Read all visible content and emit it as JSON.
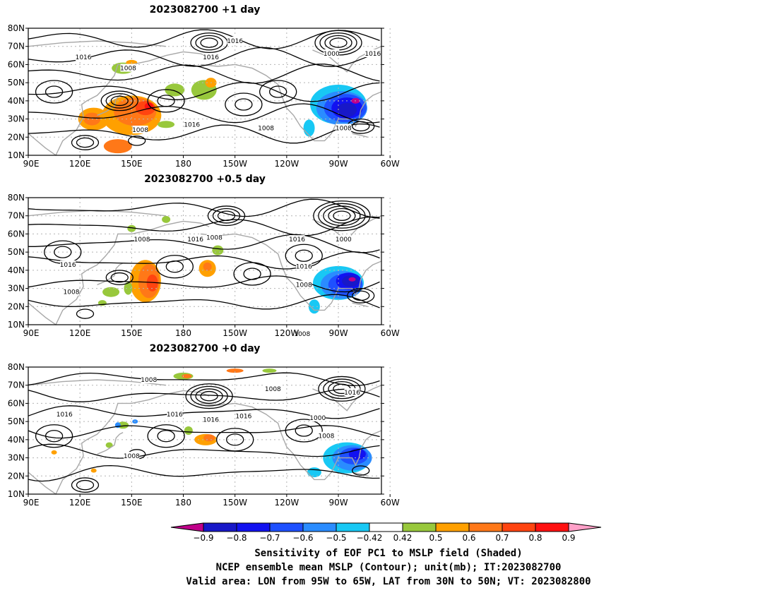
{
  "panels": [
    {
      "title": "2023082700  +1 day",
      "contour_labels": [
        "1008",
        "1016",
        "1008",
        "1016",
        "1016",
        "1016",
        "1008",
        "1000",
        "1016",
        "1008"
      ]
    },
    {
      "title": "2023082700  +0.5 day",
      "contour_labels": [
        "1008",
        "1016",
        "1008",
        "1016",
        "1008",
        "1016",
        "1016",
        "1008",
        "1000",
        "1008"
      ]
    },
    {
      "title": "2023082700  +0 day",
      "contour_labels": [
        "1008",
        "1016",
        "1016",
        "1008",
        "1016",
        "1016",
        "1008",
        "1000",
        "1016",
        "1008"
      ]
    }
  ],
  "axes": {
    "x_ticks": [
      "90E",
      "120E",
      "150E",
      "180",
      "150W",
      "120W",
      "90W",
      "60W"
    ],
    "y_ticks": [
      "80N",
      "70N",
      "60N",
      "50N",
      "40N",
      "30N",
      "20N",
      "10N"
    ],
    "lon_range": [
      90,
      295
    ],
    "lat_range": [
      10,
      80
    ]
  },
  "colorbar": {
    "levels": [
      "−0.9",
      "−0.8",
      "−0.7",
      "−0.6",
      "−0.5",
      "−0.42",
      "0.42",
      "0.5",
      "0.6",
      "0.7",
      "0.8",
      "0.9"
    ],
    "colors": [
      "#c0008a",
      "#1818c8",
      "#1212f0",
      "#1e50ff",
      "#2a8cff",
      "#18c8f4",
      "#ffffff",
      "#98c83c",
      "#ffa000",
      "#ff7818",
      "#ff4410",
      "#ff1010",
      "#ffa0c8"
    ]
  },
  "captions": [
    "Sensitivity of EOF PC1 to MSLP field (Shaded)",
    "NCEP ensemble mean MSLP (Contour); unit(mb); IT:2023082700",
    "Valid area: LON from 95W to 65W, LAT from 30N to 50N; VT: 2023082800"
  ]
}
